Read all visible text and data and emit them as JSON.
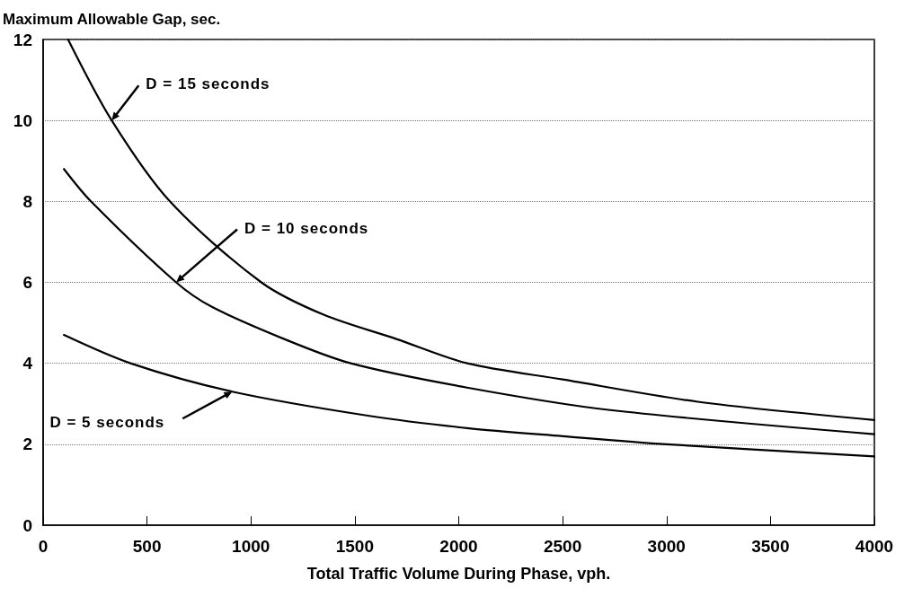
{
  "chart_data": {
    "type": "line",
    "xlabel": "Total Traffic Volume During Phase, vph.",
    "ylabel": "Maximum Allowable Gap, sec.",
    "xlim": [
      0,
      4000
    ],
    "xticks": [
      0,
      500,
      1000,
      1500,
      2000,
      2500,
      3000,
      3500,
      4000
    ],
    "ylim": [
      0,
      12
    ],
    "yticks": [
      0,
      2,
      4,
      6,
      8,
      10,
      12
    ],
    "grid": "y",
    "marker": "none",
    "line_style": "solid",
    "series": [
      {
        "color": "#000000",
        "x": [
          120,
          330,
          610,
          1050,
          1350,
          1700,
          2040,
          2500,
          3150,
          4000
        ],
        "values": [
          12,
          10,
          8,
          6,
          5.2,
          4.6,
          4,
          3.6,
          3.05,
          2.6
        ]
      },
      {
        "color": "#000000",
        "x": [
          100,
          230,
          640,
          810,
          1160,
          1480,
          2040,
          2720,
          4000
        ],
        "values": [
          8.8,
          8,
          6,
          5.4,
          4.6,
          4,
          3.4,
          2.85,
          2.25
        ]
      },
      {
        "color": "#000000",
        "x": [
          100,
          420,
          910,
          1570,
          2040,
          2500,
          3000,
          4000
        ],
        "values": [
          4.7,
          4,
          3.3,
          2.7,
          2.4,
          2.2,
          2,
          1.7
        ]
      }
    ],
    "annotations": [
      {
        "text": "D = 15 seconds",
        "x": 330,
        "y": 10
      },
      {
        "text": "D = 10 seconds",
        "x": 640,
        "y": 6
      },
      {
        "text": "D = 5 seconds",
        "x": 910,
        "y": 3.3
      }
    ]
  }
}
